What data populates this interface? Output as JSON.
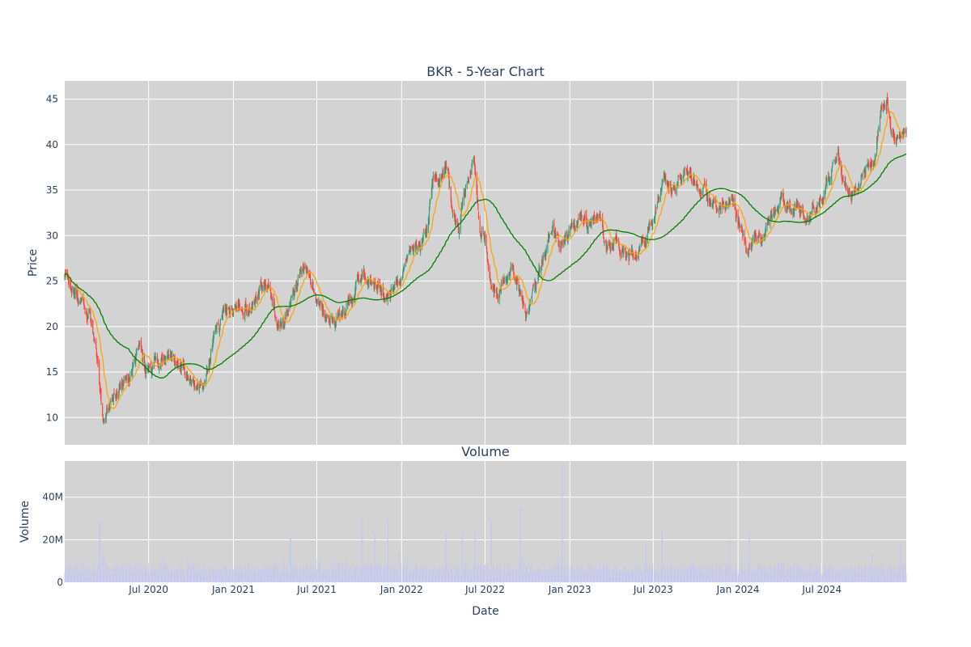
{
  "chart_data": [
    {
      "type": "candlestick",
      "title": "BKR - 5-Year Chart",
      "ylabel": "Price",
      "ylim": [
        7,
        47
      ],
      "yticks": [
        10,
        15,
        20,
        25,
        30,
        35,
        40,
        45
      ],
      "xlim": [
        "2020-01-01",
        "2024-12-31"
      ],
      "grid": true,
      "legend": "none",
      "colors": {
        "background": "#d3d3d3",
        "increasing": "#3d9970",
        "decreasing": "#ff4136",
        "ma_short": "#ffa500",
        "ma_long": "#008000"
      },
      "close_anchors": [
        [
          "2020-01-02",
          25.5
        ],
        [
          "2020-01-20",
          24.0
        ],
        [
          "2020-02-07",
          22.5
        ],
        [
          "2020-02-24",
          21.5
        ],
        [
          "2020-03-05",
          18.0
        ],
        [
          "2020-03-12",
          16.0
        ],
        [
          "2020-03-18",
          11.5
        ],
        [
          "2020-03-23",
          9.5
        ],
        [
          "2020-04-02",
          11.0
        ],
        [
          "2020-04-15",
          12.5
        ],
        [
          "2020-05-01",
          13.5
        ],
        [
          "2020-05-20",
          14.5
        ],
        [
          "2020-06-08",
          18.0
        ],
        [
          "2020-06-25",
          15.5
        ],
        [
          "2020-07-15",
          15.5
        ],
        [
          "2020-08-05",
          16.0
        ],
        [
          "2020-08-25",
          17.0
        ],
        [
          "2020-09-15",
          14.5
        ],
        [
          "2020-10-01",
          13.5
        ],
        [
          "2020-10-20",
          13.5
        ],
        [
          "2020-11-01",
          13.5
        ],
        [
          "2020-11-15",
          18.0
        ],
        [
          "2020-12-01",
          20.0
        ],
        [
          "2020-12-10",
          22.5
        ],
        [
          "2021-01-05",
          21.5
        ],
        [
          "2021-01-25",
          23.0
        ],
        [
          "2021-02-05",
          22.0
        ],
        [
          "2021-02-20",
          23.5
        ],
        [
          "2021-03-05",
          25.0
        ],
        [
          "2021-03-20",
          24.0
        ],
        [
          "2021-04-05",
          21.0
        ],
        [
          "2021-04-20",
          20.0
        ],
        [
          "2021-05-10",
          24.0
        ],
        [
          "2021-05-25",
          25.5
        ],
        [
          "2021-06-10",
          26.0
        ],
        [
          "2021-06-25",
          24.0
        ],
        [
          "2021-07-10",
          22.5
        ],
        [
          "2021-07-25",
          21.0
        ],
        [
          "2021-08-10",
          20.0
        ],
        [
          "2021-08-25",
          21.5
        ],
        [
          "2021-09-10",
          22.5
        ],
        [
          "2021-09-25",
          24.5
        ],
        [
          "2021-10-10",
          26.0
        ],
        [
          "2021-10-25",
          25.0
        ],
        [
          "2021-11-10",
          24.5
        ],
        [
          "2021-11-25",
          23.5
        ],
        [
          "2021-12-10",
          24.0
        ],
        [
          "2021-12-28",
          25.0
        ],
        [
          "2022-01-10",
          27.0
        ],
        [
          "2022-01-25",
          28.0
        ],
        [
          "2022-02-10",
          29.0
        ],
        [
          "2022-02-25",
          31.5
        ],
        [
          "2022-03-05",
          35.0
        ],
        [
          "2022-03-10",
          37.0
        ],
        [
          "2022-03-25",
          36.0
        ],
        [
          "2022-04-10",
          37.5
        ],
        [
          "2022-04-20",
          33.0
        ],
        [
          "2022-05-05",
          30.5
        ],
        [
          "2022-05-15",
          34.0
        ],
        [
          "2022-05-25",
          36.5
        ],
        [
          "2022-06-08",
          37.5
        ],
        [
          "2022-06-20",
          31.0
        ],
        [
          "2022-07-01",
          29.5
        ],
        [
          "2022-07-14",
          25.0
        ],
        [
          "2022-07-28",
          24.5
        ],
        [
          "2022-08-10",
          25.0
        ],
        [
          "2022-08-25",
          26.0
        ],
        [
          "2022-09-10",
          24.5
        ],
        [
          "2022-09-28",
          21.0
        ],
        [
          "2022-10-10",
          22.5
        ],
        [
          "2022-10-25",
          26.5
        ],
        [
          "2022-11-10",
          29.0
        ],
        [
          "2022-11-25",
          30.5
        ],
        [
          "2022-12-10",
          28.5
        ],
        [
          "2022-12-28",
          29.5
        ],
        [
          "2023-01-10",
          30.5
        ],
        [
          "2023-01-25",
          32.0
        ],
        [
          "2023-02-10",
          31.0
        ],
        [
          "2023-02-25",
          32.5
        ],
        [
          "2023-03-10",
          31.0
        ],
        [
          "2023-03-25",
          28.5
        ],
        [
          "2023-04-10",
          29.5
        ],
        [
          "2023-04-25",
          28.5
        ],
        [
          "2023-05-10",
          28.0
        ],
        [
          "2023-05-25",
          28.0
        ],
        [
          "2023-06-10",
          30.0
        ],
        [
          "2023-06-25",
          31.0
        ],
        [
          "2023-07-10",
          34.0
        ],
        [
          "2023-07-25",
          35.5
        ],
        [
          "2023-08-10",
          35.0
        ],
        [
          "2023-08-25",
          36.0
        ],
        [
          "2023-09-10",
          37.0
        ],
        [
          "2023-09-25",
          35.5
        ],
        [
          "2023-10-10",
          35.0
        ],
        [
          "2023-10-25",
          34.5
        ],
        [
          "2023-11-10",
          33.5
        ],
        [
          "2023-11-25",
          33.0
        ],
        [
          "2023-12-05",
          33.5
        ],
        [
          "2023-12-20",
          34.0
        ],
        [
          "2024-01-05",
          31.0
        ],
        [
          "2024-01-20",
          29.0
        ],
        [
          "2024-02-05",
          29.5
        ],
        [
          "2024-02-20",
          29.5
        ],
        [
          "2024-03-05",
          31.0
        ],
        [
          "2024-03-20",
          33.0
        ],
        [
          "2024-04-05",
          34.0
        ],
        [
          "2024-04-20",
          33.0
        ],
        [
          "2024-05-05",
          33.0
        ],
        [
          "2024-05-20",
          32.5
        ],
        [
          "2024-06-05",
          32.5
        ],
        [
          "2024-06-20",
          33.0
        ],
        [
          "2024-07-05",
          35.0
        ],
        [
          "2024-07-20",
          36.0
        ],
        [
          "2024-08-05",
          38.0
        ],
        [
          "2024-08-15",
          36.0
        ],
        [
          "2024-08-25",
          35.0
        ],
        [
          "2024-09-10",
          34.0
        ],
        [
          "2024-09-25",
          36.5
        ],
        [
          "2024-10-10",
          37.5
        ],
        [
          "2024-10-25",
          38.0
        ],
        [
          "2024-11-05",
          43.5
        ],
        [
          "2024-11-18",
          44.5
        ],
        [
          "2024-11-28",
          42.0
        ],
        [
          "2024-12-05",
          40.5
        ],
        [
          "2024-12-15",
          40.0
        ],
        [
          "2024-12-31",
          41.0
        ]
      ]
    },
    {
      "type": "bar",
      "title": "Volume",
      "xlabel": "Date",
      "ylabel": "Volume",
      "ylim": [
        0,
        57000000
      ],
      "yticks": [
        0,
        20000000,
        40000000
      ],
      "ytick_labels": [
        "0",
        "20M",
        "40M"
      ],
      "xticks": [
        "2020-07-01",
        "2021-01-01",
        "2021-07-01",
        "2022-01-01",
        "2022-07-01",
        "2023-01-01",
        "2023-07-01",
        "2024-01-01",
        "2024-07-01"
      ],
      "xtick_labels": [
        "Jul 2020",
        "Jan 2021",
        "Jul 2021",
        "Jan 2022",
        "Jul 2022",
        "Jan 2023",
        "Jul 2023",
        "Jan 2024",
        "Jul 2024"
      ],
      "grid": true,
      "colors": {
        "background": "#d3d3d3",
        "bar": "#c5c8f0"
      },
      "base_volume": 6500000,
      "spikes": [
        [
          "2020-03-17",
          28000000
        ],
        [
          "2020-03-25",
          12000000
        ],
        [
          "2021-05-05",
          21000000
        ],
        [
          "2021-10-08",
          30000000
        ],
        [
          "2021-11-05",
          23000000
        ],
        [
          "2021-12-03",
          30000000
        ],
        [
          "2022-01-14",
          12000000
        ],
        [
          "2022-04-08",
          23000000
        ],
        [
          "2022-05-13",
          23000000
        ],
        [
          "2022-06-10",
          26000000
        ],
        [
          "2022-07-15",
          29000000
        ],
        [
          "2022-09-16",
          35000000
        ],
        [
          "2022-12-16",
          54000000
        ],
        [
          "2023-06-16",
          18000000
        ],
        [
          "2023-07-21",
          24000000
        ],
        [
          "2023-12-15",
          20000000
        ],
        [
          "2024-01-26",
          24000000
        ],
        [
          "2024-10-18",
          14000000
        ],
        [
          "2024-12-20",
          18000000
        ]
      ]
    }
  ]
}
